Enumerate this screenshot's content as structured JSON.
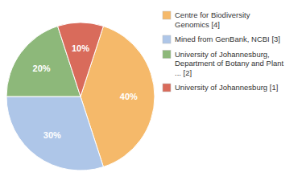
{
  "chart_data": {
    "type": "pie",
    "categories": [
      "Centre for Biodiversity\nGenomics [4]",
      "Mined from GenBank, NCBI [3]",
      "University of Johannesburg,\nDepartment of Botany and Plant\n... [2]",
      "University of Johannesburg [1]"
    ],
    "values": [
      40,
      30,
      20,
      10
    ],
    "value_labels": [
      "40%",
      "30%",
      "20%",
      "10%"
    ],
    "colors": [
      "#f5b96a",
      "#aec6e8",
      "#8db87a",
      "#d96b5b"
    ],
    "data_labels": true,
    "legend": "right"
  }
}
